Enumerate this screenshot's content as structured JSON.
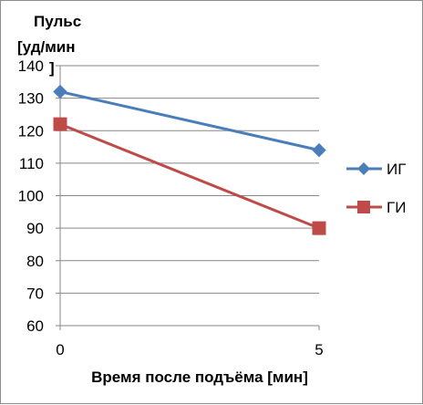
{
  "chart_data": {
    "type": "line",
    "title": "",
    "ylabel_lines": [
      "Пульс",
      "[уд/мин",
      "]"
    ],
    "xlabel": "Время после подъёма [мин]",
    "x": [
      0,
      5
    ],
    "x_tick_labels": [
      "0",
      "5"
    ],
    "ylim": [
      60,
      140
    ],
    "y_ticks": [
      60,
      70,
      80,
      90,
      100,
      110,
      120,
      130,
      140
    ],
    "grid": true,
    "legend_position": "right",
    "series": [
      {
        "name": "ИГ",
        "values": [
          132,
          114
        ],
        "color": "#4a7ebb",
        "marker": "diamond"
      },
      {
        "name": "ГИ",
        "values": [
          122,
          90
        ],
        "color": "#be4b48",
        "marker": "square"
      }
    ]
  }
}
